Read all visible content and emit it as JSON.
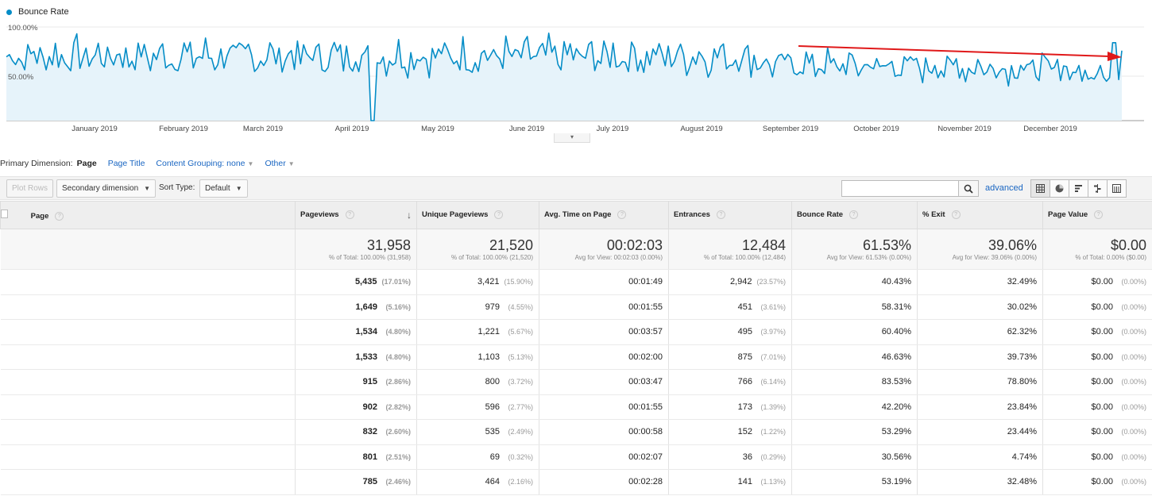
{
  "chart": {
    "legend": "Bounce Rate",
    "y_labels": [
      "100.00%",
      "50.00%"
    ],
    "months": [
      "January 2019",
      "February 2019",
      "March 2019",
      "April 2019",
      "May 2019",
      "June 2019",
      "July 2019",
      "August 2019",
      "September 2019",
      "October 2019",
      "November 2019",
      "December 2019"
    ],
    "colors": {
      "line": "#058dc7",
      "fill": "#e6f3fa",
      "trend_arrow": "#e0191a"
    }
  },
  "dimension_row": {
    "label": "Primary Dimension:",
    "current": "Page",
    "page_title": "Page Title",
    "content_grouping": "Content Grouping: none",
    "other": "Other"
  },
  "toolbar": {
    "plot_rows": "Plot Rows",
    "secondary_dimension": "Secondary dimension",
    "sort_type_label": "Sort Type:",
    "sort_default": "Default",
    "advanced": "advanced"
  },
  "table": {
    "headers": {
      "page": "Page",
      "pageviews": "Pageviews",
      "unique": "Unique Pageviews",
      "avg_time": "Avg. Time on Page",
      "entrances": "Entrances",
      "bounce": "Bounce Rate",
      "exit": "% Exit",
      "value": "Page Value"
    },
    "totals": {
      "pageviews": "31,958",
      "pageviews_sub": "% of Total: 100.00% (31,958)",
      "unique": "21,520",
      "unique_sub": "% of Total: 100.00% (21,520)",
      "avg_time": "00:02:03",
      "avg_time_sub": "Avg for View: 00:02:03 (0.00%)",
      "entrances": "12,484",
      "entrances_sub": "% of Total: 100.00% (12,484)",
      "bounce": "61.53%",
      "bounce_sub": "Avg for View: 61.53% (0.00%)",
      "exit": "39.06%",
      "exit_sub": "Avg for View: 39.06% (0.00%)",
      "value": "$0.00",
      "value_sub": "% of Total: 0.00% ($0.00)"
    },
    "rows": [
      {
        "pv": "5,435",
        "pv_pct": "(17.01%)",
        "upv": "3,421",
        "upv_pct": "(15.90%)",
        "time": "00:01:49",
        "ent": "2,942",
        "ent_pct": "(23.57%)",
        "bounce": "40.43%",
        "exit": "32.49%",
        "val": "$0.00",
        "val_pct": "(0.00%)"
      },
      {
        "pv": "1,649",
        "pv_pct": "(5.16%)",
        "upv": "979",
        "upv_pct": "(4.55%)",
        "time": "00:01:55",
        "ent": "451",
        "ent_pct": "(3.61%)",
        "bounce": "58.31%",
        "exit": "30.02%",
        "val": "$0.00",
        "val_pct": "(0.00%)"
      },
      {
        "pv": "1,534",
        "pv_pct": "(4.80%)",
        "upv": "1,221",
        "upv_pct": "(5.67%)",
        "time": "00:03:57",
        "ent": "495",
        "ent_pct": "(3.97%)",
        "bounce": "60.40%",
        "exit": "62.32%",
        "val": "$0.00",
        "val_pct": "(0.00%)"
      },
      {
        "pv": "1,533",
        "pv_pct": "(4.80%)",
        "upv": "1,103",
        "upv_pct": "(5.13%)",
        "time": "00:02:00",
        "ent": "875",
        "ent_pct": "(7.01%)",
        "bounce": "46.63%",
        "exit": "39.73%",
        "val": "$0.00",
        "val_pct": "(0.00%)"
      },
      {
        "pv": "915",
        "pv_pct": "(2.86%)",
        "upv": "800",
        "upv_pct": "(3.72%)",
        "time": "00:03:47",
        "ent": "766",
        "ent_pct": "(6.14%)",
        "bounce": "83.53%",
        "exit": "78.80%",
        "val": "$0.00",
        "val_pct": "(0.00%)"
      },
      {
        "pv": "902",
        "pv_pct": "(2.82%)",
        "upv": "596",
        "upv_pct": "(2.77%)",
        "time": "00:01:55",
        "ent": "173",
        "ent_pct": "(1.39%)",
        "bounce": "42.20%",
        "exit": "23.84%",
        "val": "$0.00",
        "val_pct": "(0.00%)"
      },
      {
        "pv": "832",
        "pv_pct": "(2.60%)",
        "upv": "535",
        "upv_pct": "(2.49%)",
        "time": "00:00:58",
        "ent": "152",
        "ent_pct": "(1.22%)",
        "bounce": "53.29%",
        "exit": "23.44%",
        "val": "$0.00",
        "val_pct": "(0.00%)"
      },
      {
        "pv": "801",
        "pv_pct": "(2.51%)",
        "upv": "69",
        "upv_pct": "(0.32%)",
        "time": "00:02:07",
        "ent": "36",
        "ent_pct": "(0.29%)",
        "bounce": "30.56%",
        "exit": "4.74%",
        "val": "$0.00",
        "val_pct": "(0.00%)"
      },
      {
        "pv": "785",
        "pv_pct": "(2.46%)",
        "upv": "464",
        "upv_pct": "(2.16%)",
        "time": "00:02:28",
        "ent": "141",
        "ent_pct": "(1.13%)",
        "bounce": "53.19%",
        "exit": "32.48%",
        "val": "$0.00",
        "val_pct": "(0.00%)"
      }
    ]
  }
}
